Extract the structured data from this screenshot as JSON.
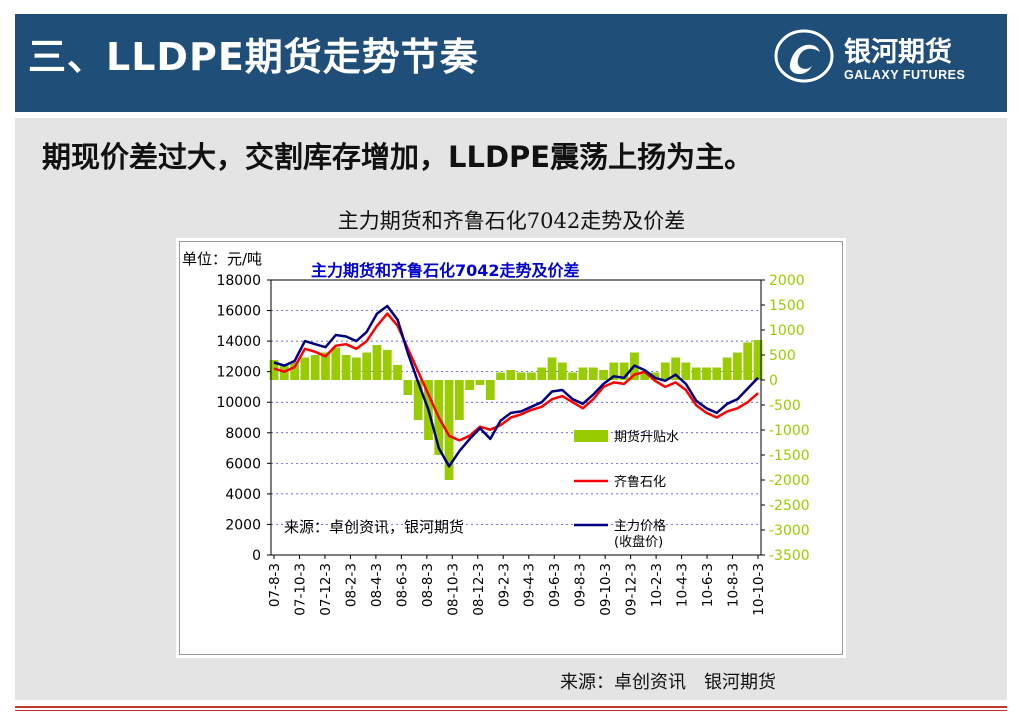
{
  "header": {
    "title": "三、LLDPE期货走势节奏",
    "logo_cn": "银河期货",
    "logo_en": "GALAXY FUTURES"
  },
  "subtitle": "期现价差过大，交割库存增加，LLDPE震荡上扬为主。",
  "chart_caption": "主力期货和齐鲁石化7042走势及价差",
  "source_text": "来源：卓创资讯　银河期货",
  "colors": {
    "header_bg": "#1f4e79",
    "content_bg": "#e4e4e4",
    "spread_bar": "#99cc00",
    "qilu_line": "#ff0000",
    "futures_line": "#000080",
    "left_axis_text": "#000000",
    "right_axis_text": "#99cc00",
    "chart_title": "#0000cc"
  },
  "chart_data": {
    "type": "line",
    "title": "主力期货和齐鲁石化7042走势及价差",
    "unit_label": "单位：元/吨",
    "source_annotation": "来源：卓创资讯，银河期货",
    "grid": true,
    "legend_position": "right",
    "left_ylim": [
      0,
      18000
    ],
    "left_ticks": [
      "18000",
      "16000",
      "14000",
      "12000",
      "10000",
      "8000",
      "6000",
      "4000",
      "2000",
      "0"
    ],
    "right_ylim": [
      -3500,
      2000
    ],
    "right_ticks": [
      "2000",
      "1500",
      "1000",
      "500",
      "0",
      "-500",
      "-1000",
      "-1500",
      "-2000",
      "-2500",
      "-3000",
      "-3500"
    ],
    "x_ticks": [
      "07-8-3",
      "07-10-3",
      "07-12-3",
      "08-2-3",
      "08-4-3",
      "08-6-3",
      "08-8-3",
      "08-10-3",
      "08-12-3",
      "09-2-3",
      "09-4-3",
      "09-6-3",
      "09-8-3",
      "09-10-3",
      "09-12-3",
      "10-2-3",
      "10-4-3",
      "10-6-3",
      "10-8-3",
      "10-10-3"
    ],
    "legend": [
      "期货升贴水",
      "齐鲁石化",
      "主力价格(收盘价)"
    ],
    "legend_lines": {
      "spread": "期货升贴水",
      "qilu": "齐鲁石化",
      "futures_1": "主力价格",
      "futures_2": "(收盘价)"
    },
    "series": [
      {
        "name": "齐鲁石化",
        "axis": "left",
        "values": [
          12200,
          12000,
          12300,
          13500,
          13300,
          13000,
          13700,
          13800,
          13500,
          14000,
          15000,
          15800,
          15000,
          13500,
          12000,
          10500,
          9000,
          7800,
          7500,
          7800,
          8400,
          8200,
          8500,
          9000,
          9200,
          9500,
          9700,
          10200,
          10400,
          10000,
          9600,
          10200,
          11000,
          11300,
          11200,
          11800,
          12000,
          11400,
          11000,
          11300,
          10800,
          9800,
          9300,
          9000,
          9400,
          9600,
          10000,
          10600
        ]
      },
      {
        "name": "主力价格(收盘价)",
        "axis": "left",
        "values": [
          12600,
          12400,
          12700,
          14000,
          13800,
          13600,
          14400,
          14300,
          14000,
          14600,
          15800,
          16300,
          15400,
          13200,
          11300,
          9500,
          7000,
          5800,
          6800,
          7600,
          8300,
          7600,
          8800,
          9300,
          9400,
          9700,
          10000,
          10700,
          10800,
          10200,
          9900,
          10500,
          11200,
          11700,
          11600,
          12400,
          12100,
          11600,
          11400,
          11800,
          11200,
          10100,
          9600,
          9300,
          9900,
          10200,
          10900,
          11600
        ]
      },
      {
        "name": "期货升贴水",
        "axis": "right",
        "values": [
          400,
          300,
          350,
          450,
          500,
          550,
          650,
          500,
          450,
          550,
          700,
          600,
          300,
          -300,
          -800,
          -1200,
          -1500,
          -2000,
          -800,
          -200,
          -100,
          -400,
          150,
          200,
          150,
          150,
          250,
          450,
          350,
          150,
          250,
          250,
          200,
          350,
          350,
          550,
          150,
          150,
          350,
          450,
          350,
          250,
          250,
          250,
          450,
          550,
          750,
          800
        ]
      }
    ]
  }
}
